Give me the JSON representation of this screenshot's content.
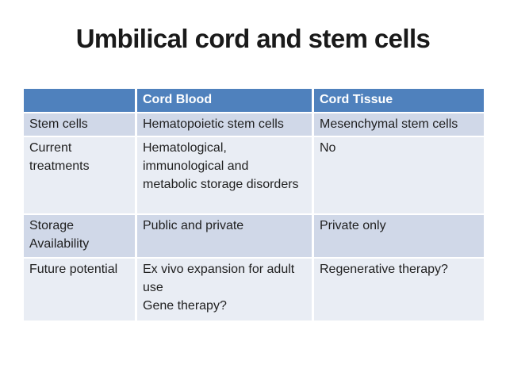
{
  "slide": {
    "title": "Umbilical cord and stem cells"
  },
  "table": {
    "header": {
      "cells": [
        "",
        "Cord Blood",
        "Cord Tissue"
      ]
    },
    "rows": [
      {
        "cells": [
          "Stem cells",
          "Hematopoietic stem cells",
          "Mesenchymal stem cells"
        ]
      },
      {
        "cells": [
          "Current treatments",
          "Hematological, immunological and metabolic storage disorders",
          "No"
        ]
      },
      {
        "cells": [
          "Storage Availability",
          "Public and private",
          "Private only"
        ]
      },
      {
        "cells": [
          "Future potential",
          "Ex vivo expansion for adult use\nGene therapy?",
          "Regenerative therapy?"
        ]
      }
    ],
    "colors": {
      "header_bg": "#4f81bd",
      "header_text": "#ffffff",
      "band_dark": "#d0d8e8",
      "band_light": "#e9edf4",
      "body_text": "#1f1f1f",
      "title_text": "#1a1a1a"
    }
  }
}
